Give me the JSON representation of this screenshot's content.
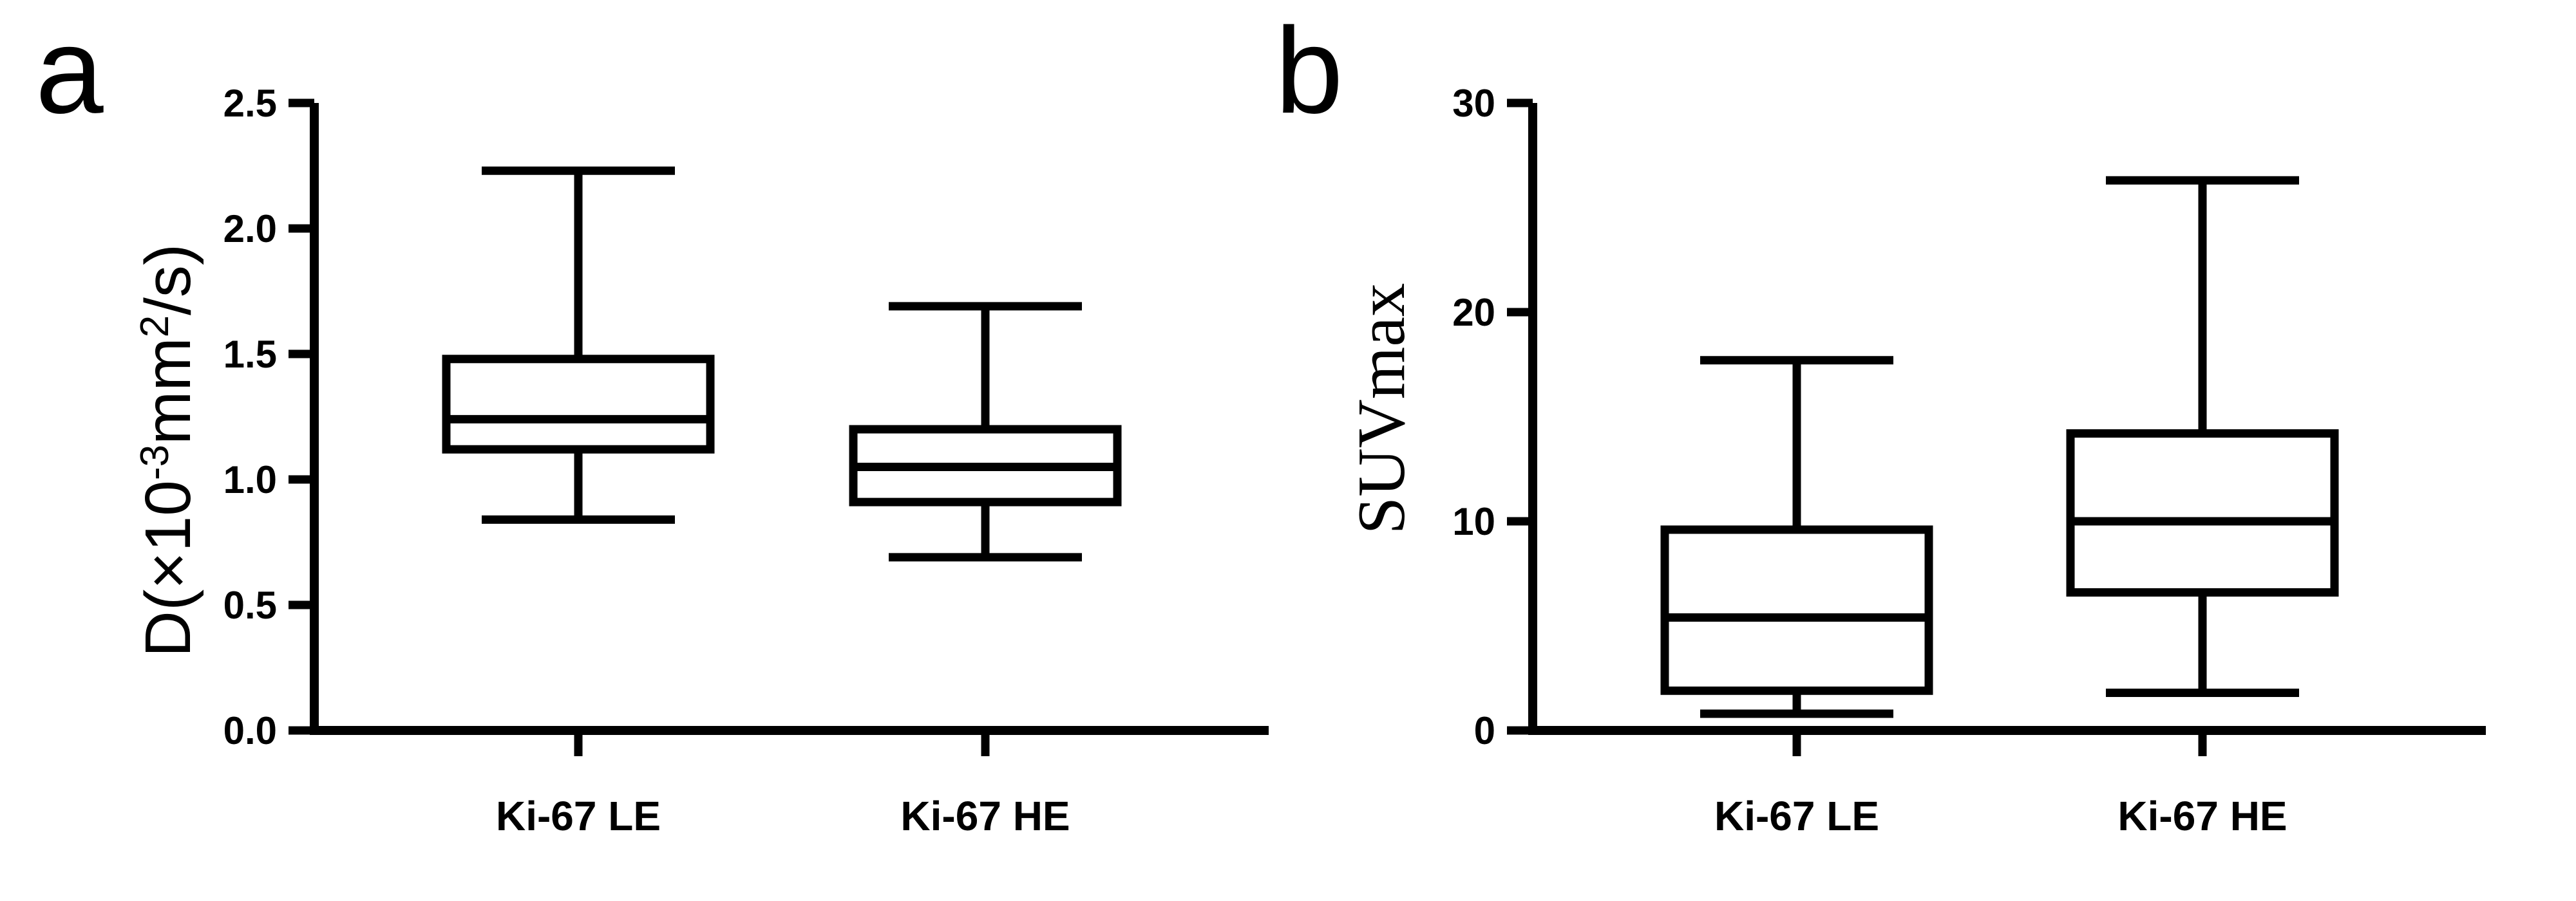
{
  "chart_data": [
    {
      "panel": "a",
      "type": "box",
      "ylabel": "D(×10⁻³mm²/s)",
      "ylabel_parts": {
        "main": "D(×10",
        "sup1": "-3",
        "mid": "mm",
        "sup2": "2",
        "end": "/s)"
      },
      "ylim": [
        0,
        2.5
      ],
      "yticks": [
        0.0,
        0.5,
        1.0,
        1.5,
        2.0,
        2.5
      ],
      "ytick_labels": [
        "0.0",
        "0.5",
        "1.0",
        "1.5",
        "2.0",
        "2.5"
      ],
      "categories": [
        "Ki-67 LE",
        "Ki-67 HE"
      ],
      "boxes": [
        {
          "category": "Ki-67 LE",
          "min": 0.84,
          "q1": 1.12,
          "median": 1.24,
          "q3": 1.48,
          "max": 2.23
        },
        {
          "category": "Ki-67 HE",
          "min": 0.69,
          "q1": 0.91,
          "median": 1.05,
          "q3": 1.2,
          "max": 1.69
        }
      ],
      "grid": false
    },
    {
      "panel": "b",
      "type": "box",
      "ylabel": "SUVmax",
      "ylim": [
        0,
        30
      ],
      "yticks": [
        0,
        10,
        20,
        30
      ],
      "ytick_labels": [
        "0",
        "10",
        "20",
        "30"
      ],
      "categories": [
        "Ki-67 LE",
        "Ki-67 HE"
      ],
      "boxes": [
        {
          "category": "Ki-67 LE",
          "min": 0.8,
          "q1": 1.9,
          "median": 5.4,
          "q3": 9.6,
          "max": 17.7
        },
        {
          "category": "Ki-67 HE",
          "min": 1.8,
          "q1": 6.6,
          "median": 10.0,
          "q3": 14.2,
          "max": 26.3
        }
      ],
      "grid": false
    }
  ]
}
